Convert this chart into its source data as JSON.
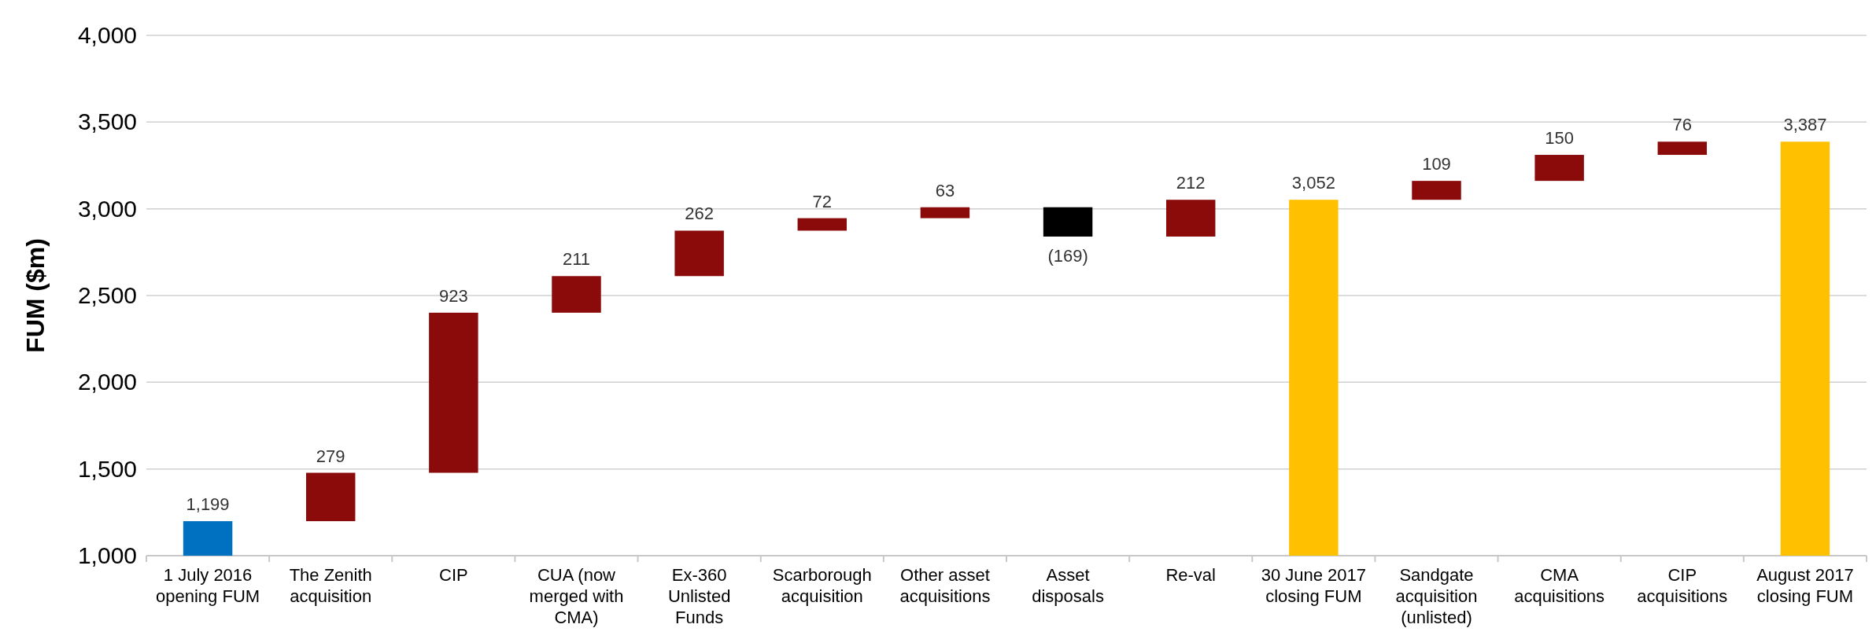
{
  "chart_data": {
    "type": "bar",
    "ylabel": "FUM ($m)",
    "categories": [
      "1 July 2016 opening FUM",
      "The Zenith acquisition",
      "CIP",
      "CUA (now merged with CMA)",
      "Ex-360 Unlisted Funds",
      "Scarborough acquisition",
      "Other asset acquisitions",
      "Asset disposals",
      "Re-val",
      "30 June 2017 closing FUM",
      "Sandgate acquisition (unlisted)",
      "CMA acquisitions",
      "CIP acquisitions",
      "August 2017 closing FUM"
    ],
    "values": [
      1199,
      279,
      923,
      211,
      262,
      72,
      63,
      -169,
      212,
      3052,
      109,
      150,
      76,
      3387
    ],
    "base": [
      null,
      1199,
      1478,
      2401,
      2612,
      2874,
      2946,
      3009,
      2840,
      null,
      3052,
      3161,
      3311,
      null
    ],
    "colors": [
      "#0070c0",
      "#8b0a0a",
      "#8b0a0a",
      "#8b0a0a",
      "#8b0a0a",
      "#8b0a0a",
      "#8b0a0a",
      "#000000",
      "#8b0a0a",
      "#ffc000",
      "#8b0a0a",
      "#8b0a0a",
      "#8b0a0a",
      "#ffc000"
    ],
    "value_labels": [
      "1,199",
      "279",
      "923",
      "211",
      "262",
      "72",
      "63",
      "(169)",
      "212",
      "3,052",
      "109",
      "150",
      "76",
      "3,387"
    ],
    "ylim": [
      1000,
      4000
    ],
    "yticks": [
      {
        "value": 1000,
        "label": "1,000"
      },
      {
        "value": 1500,
        "label": "1,500"
      },
      {
        "value": 2000,
        "label": "2,000"
      },
      {
        "value": 2500,
        "label": "2,500"
      },
      {
        "value": 3000,
        "label": "3,000"
      },
      {
        "value": 3500,
        "label": "3,500"
      },
      {
        "value": 4000,
        "label": "4,000"
      }
    ],
    "grid": "y"
  }
}
